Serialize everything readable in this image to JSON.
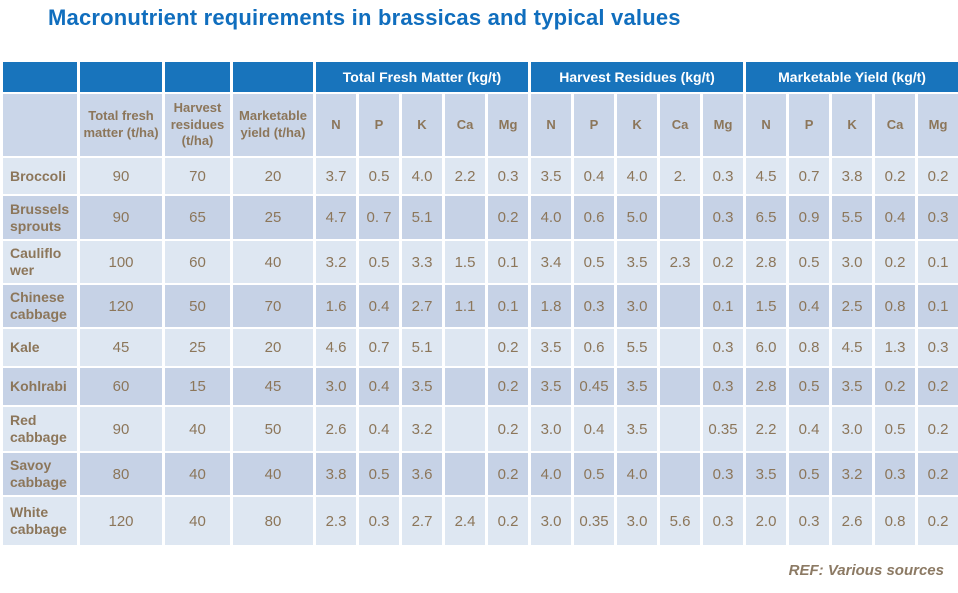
{
  "title": "Macronutrient requirements in brassicas and typical values",
  "footer": {
    "ref": "REF: Various sources"
  },
  "colors": {
    "title_blue": "#106ebe",
    "header_blue": "#1874bc",
    "subheader_bg": "#cad6e9",
    "row_light": "#dee7f2",
    "row_dark": "#c6d2e6",
    "text_brown": "#8c765a"
  },
  "table": {
    "groups": [
      "Total Fresh Matter (kg/t)",
      "Harvest Residues (kg/t)",
      "Marketable Yield (kg/t)"
    ],
    "lead_headers": [
      "Total fresh matter (t/ha)",
      "Harvest residues (t/ha)",
      "Marketable yield (t/ha)"
    ],
    "nutrients": [
      "N",
      "P",
      "K",
      "Ca",
      "Mg"
    ],
    "rows": [
      {
        "crop": "Broccoli",
        "tha": [
          "90",
          "70",
          "20"
        ],
        "tfm": [
          "3.7",
          "0.5",
          "4.0",
          "2.2",
          "0.3"
        ],
        "hr": [
          "3.5",
          "0.4",
          "4.0",
          "2.",
          "0.3"
        ],
        "my": [
          "4.5",
          "0.7",
          "3.8",
          "0.2",
          "0.2"
        ]
      },
      {
        "crop": "Brussels sprouts",
        "tha": [
          "90",
          "65",
          "25"
        ],
        "tfm": [
          "4.7",
          "0. 7",
          "5.1",
          "",
          "0.2"
        ],
        "hr": [
          "4.0",
          "0.6",
          "5.0",
          "",
          "0.3"
        ],
        "my": [
          "6.5",
          "0.9",
          "5.5",
          "0.4",
          "0.3"
        ]
      },
      {
        "crop": "Cauliflo\nwer",
        "tha": [
          "100",
          "60",
          "40"
        ],
        "tfm": [
          "3.2",
          "0.5",
          "3.3",
          "1.5",
          "0.1"
        ],
        "hr": [
          "3.4",
          "0.5",
          "3.5",
          "2.3",
          "0.2"
        ],
        "my": [
          "2.8",
          "0.5",
          "3.0",
          "0.2",
          "0.1"
        ]
      },
      {
        "crop": "Chinese cabbage",
        "tha": [
          "120",
          "50",
          "70"
        ],
        "tfm": [
          "1.6",
          "0.4",
          "2.7",
          "1.1",
          "0.1"
        ],
        "hr": [
          "1.8",
          "0.3",
          "3.0",
          "",
          "0.1"
        ],
        "my": [
          "1.5",
          "0.4",
          "2.5",
          "0.8",
          "0.1"
        ]
      },
      {
        "crop": "Kale",
        "tha": [
          "45",
          "25",
          "20"
        ],
        "tfm": [
          "4.6",
          "0.7",
          "5.1",
          "",
          "0.2"
        ],
        "hr": [
          "3.5",
          "0.6",
          "5.5",
          "",
          "0.3"
        ],
        "my": [
          "6.0",
          "0.8",
          "4.5",
          "1.3",
          "0.3"
        ]
      },
      {
        "crop": "Kohlrabi",
        "tha": [
          "60",
          "15",
          "45"
        ],
        "tfm": [
          "3.0",
          "0.4",
          "3.5",
          "",
          "0.2"
        ],
        "hr": [
          "3.5",
          "0.45",
          "3.5",
          "",
          "0.3"
        ],
        "my": [
          "2.8",
          "0.5",
          "3.5",
          "0.2",
          "0.2"
        ]
      },
      {
        "crop": "Red cabbage",
        "tha": [
          "90",
          "40",
          "50"
        ],
        "tfm": [
          "2.6",
          "0.4",
          "3.2",
          "",
          "0.2"
        ],
        "hr": [
          "3.0",
          "0.4",
          "3.5",
          "",
          "0.35"
        ],
        "my": [
          "2.2",
          "0.4",
          "3.0",
          "0.5",
          "0.2"
        ]
      },
      {
        "crop": "Savoy cabbage",
        "tha": [
          "80",
          "40",
          "40"
        ],
        "tfm": [
          "3.8",
          "0.5",
          "3.6",
          "",
          "0.2"
        ],
        "hr": [
          "4.0",
          "0.5",
          "4.0",
          "",
          "0.3"
        ],
        "my": [
          "3.5",
          "0.5",
          "3.2",
          "0.3",
          "0.2"
        ]
      },
      {
        "crop": "White cabbage",
        "tha": [
          "120",
          "40",
          "80"
        ],
        "tfm": [
          "2.3",
          "0.3",
          "2.7",
          "2.4",
          "0.2"
        ],
        "hr": [
          "3.0",
          "0.35",
          "3.0",
          "5.6",
          "0.3"
        ],
        "my": [
          "2.0",
          "0.3",
          "2.6",
          "0.8",
          "0.2"
        ]
      }
    ]
  }
}
